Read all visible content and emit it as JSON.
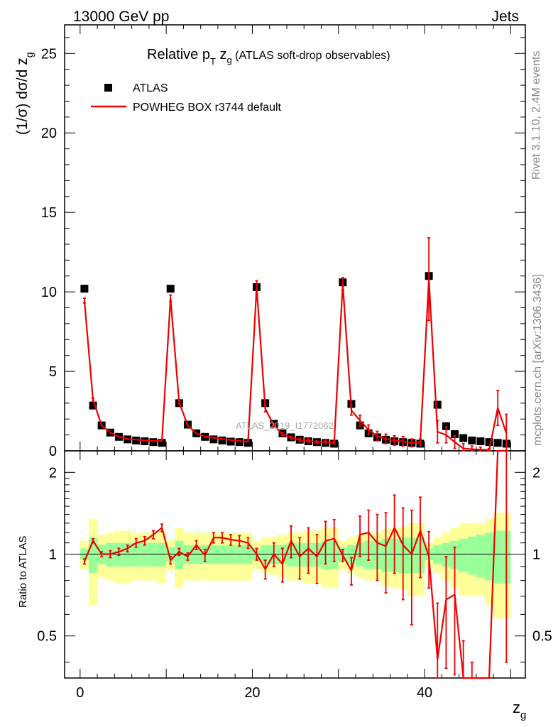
{
  "header": {
    "energy_label": "13000 GeV pp",
    "process_label": "Jets"
  },
  "side": {
    "rivet": "Rivet 3.1.10,  2.4M events",
    "mcplots": "mcplots.cern.ch [arXiv:1306.3436]"
  },
  "colors": {
    "data": "#000000",
    "mc": "#ee0000",
    "band_inner": "#99ff99",
    "band_outer": "#ffff99"
  },
  "chart_data": {
    "type": "scatter",
    "title_main": "Relative p",
    "title_sub": "T",
    "title_var": " z",
    "title_varsub": "g",
    "title_rest": " (ATLAS soft-drop observables)",
    "ylabel_main": "(1/σ) dσ/d z",
    "ylabel_sub": "g",
    "xlabel_main": "z",
    "xlabel_sub": "g",
    "analysis_label": "ATLAS_2019_I1772062",
    "ratio_ylabel": "Ratio to ATLAS",
    "xlim": [
      -1.8,
      51.7
    ],
    "ylim": [
      0,
      26.8
    ],
    "ratio_ylim": [
      0.35,
      2.4
    ],
    "x_ticks": [
      0,
      20,
      40
    ],
    "x_tick_labels": [
      "0",
      "20",
      "40"
    ],
    "y_ticks": [
      0,
      5,
      10,
      15,
      20,
      25
    ],
    "y_tick_labels": [
      "0",
      "5",
      "10",
      "15",
      "20",
      "25"
    ],
    "ratio_ticks": [
      0.5,
      1,
      2
    ],
    "ratio_tick_labels": [
      "0.5",
      "1",
      "2"
    ],
    "legend": [
      {
        "name": "ATLAS",
        "style": "marker"
      },
      {
        "name": "POWHEG BOX r3744 default",
        "style": "line"
      }
    ],
    "x": [
      0.5,
      1.5,
      2.5,
      3.5,
      4.5,
      5.5,
      6.5,
      7.5,
      8.5,
      9.5,
      10.5,
      11.5,
      12.5,
      13.5,
      14.5,
      15.5,
      16.5,
      17.5,
      18.5,
      19.5,
      20.5,
      21.5,
      22.5,
      23.5,
      24.5,
      25.5,
      26.5,
      27.5,
      28.5,
      29.5,
      30.5,
      31.5,
      32.5,
      33.5,
      34.5,
      35.5,
      36.5,
      37.5,
      38.5,
      39.5,
      40.5,
      41.5,
      42.5,
      43.5,
      44.5,
      45.5,
      46.5,
      47.5,
      48.5,
      49.5
    ],
    "series": [
      {
        "name": "ATLAS",
        "values": [
          10.2,
          2.85,
          1.6,
          1.15,
          0.88,
          0.72,
          0.65,
          0.6,
          0.55,
          0.5,
          10.2,
          3.0,
          1.65,
          1.1,
          0.88,
          0.72,
          0.65,
          0.58,
          0.55,
          0.5,
          10.3,
          3.0,
          1.7,
          1.1,
          0.85,
          0.7,
          0.6,
          0.55,
          0.5,
          0.45,
          10.6,
          2.95,
          1.6,
          1.1,
          0.85,
          0.7,
          0.6,
          0.55,
          0.5,
          0.45,
          11.0,
          2.9,
          1.55,
          1.05,
          0.8,
          0.65,
          0.6,
          0.55,
          0.5,
          0.45
        ]
      },
      {
        "name": "POWHEG BOX r3744 default",
        "values": [
          9.45,
          3.2,
          1.6,
          1.15,
          0.88,
          0.75,
          0.7,
          0.66,
          0.63,
          0.62,
          9.6,
          3.05,
          1.6,
          1.1,
          0.9,
          0.82,
          0.75,
          0.68,
          0.62,
          0.57,
          10.3,
          2.65,
          1.6,
          1.05,
          0.83,
          0.69,
          0.64,
          0.54,
          0.56,
          0.52,
          10.5,
          2.55,
          1.9,
          1.33,
          0.93,
          0.75,
          0.65,
          0.6,
          0.5,
          0.55,
          10.8,
          1.2,
          1.0,
          0.55,
          0.15,
          0.1,
          0.08,
          0.05,
          2.7,
          1.1
        ]
      }
    ],
    "mc_errors": [
      0.15,
      0.1,
      0.05,
      0.05,
      0.04,
      0.03,
      0.03,
      0.03,
      0.03,
      0.03,
      0.2,
      0.1,
      0.05,
      0.05,
      0.04,
      0.04,
      0.03,
      0.03,
      0.03,
      0.03,
      0.4,
      0.2,
      0.1,
      0.1,
      0.1,
      0.1,
      0.12,
      0.1,
      0.1,
      0.1,
      0.4,
      0.3,
      0.35,
      0.3,
      0.3,
      0.3,
      0.3,
      0.3,
      0.25,
      0.2,
      2.6,
      0.7,
      0.5,
      0.4,
      0.3,
      0.2,
      0.15,
      0.1,
      1.1,
      1.2
    ],
    "ratio": [
      0.94,
      1.12,
      1.0,
      1.0,
      1.02,
      1.05,
      1.1,
      1.12,
      1.18,
      1.25,
      0.95,
      1.02,
      0.98,
      1.08,
      0.99,
      1.15,
      1.15,
      1.13,
      1.12,
      1.1,
      1.0,
      0.88,
      1.0,
      0.92,
      1.12,
      0.98,
      1.05,
      0.98,
      1.12,
      1.14,
      0.99,
      0.87,
      1.18,
      1.2,
      1.1,
      1.07,
      1.25,
      1.08,
      1.0,
      1.22,
      0.98,
      0.41,
      0.68,
      0.71,
      0.18,
      0.15,
      0.12,
      0.1,
      5.4,
      2.4
    ],
    "ratio_errors": [
      0.02,
      0.02,
      0.02,
      0.03,
      0.03,
      0.03,
      0.04,
      0.04,
      0.04,
      0.04,
      0.03,
      0.03,
      0.03,
      0.04,
      0.05,
      0.05,
      0.05,
      0.05,
      0.05,
      0.05,
      0.05,
      0.07,
      0.1,
      0.13,
      0.15,
      0.17,
      0.2,
      0.2,
      0.2,
      0.2,
      0.05,
      0.1,
      0.2,
      0.25,
      0.3,
      0.35,
      0.4,
      0.4,
      0.45,
      0.4,
      0.23,
      0.25,
      0.3,
      0.35,
      0.3,
      0.25,
      0.2,
      0.2,
      2.5,
      2.0
    ],
    "band_outer": [
      0.12,
      0.35,
      0.18,
      0.2,
      0.22,
      0.22,
      0.2,
      0.2,
      0.2,
      0.22,
      0.13,
      0.25,
      0.2,
      0.2,
      0.2,
      0.2,
      0.2,
      0.2,
      0.2,
      0.2,
      0.12,
      0.15,
      0.16,
      0.18,
      0.2,
      0.2,
      0.22,
      0.22,
      0.25,
      0.25,
      0.12,
      0.15,
      0.18,
      0.2,
      0.2,
      0.24,
      0.25,
      0.26,
      0.3,
      0.3,
      0.1,
      0.15,
      0.2,
      0.25,
      0.3,
      0.3,
      0.3,
      0.35,
      0.42,
      0.42
    ],
    "band_inner": [
      0.05,
      0.15,
      0.08,
      0.1,
      0.1,
      0.1,
      0.1,
      0.1,
      0.1,
      0.1,
      0.06,
      0.12,
      0.08,
      0.08,
      0.08,
      0.08,
      0.08,
      0.08,
      0.08,
      0.08,
      0.05,
      0.08,
      0.08,
      0.08,
      0.1,
      0.1,
      0.1,
      0.1,
      0.12,
      0.12,
      0.06,
      0.08,
      0.1,
      0.12,
      0.12,
      0.14,
      0.14,
      0.15,
      0.15,
      0.15,
      0.05,
      0.08,
      0.1,
      0.12,
      0.14,
      0.16,
      0.18,
      0.2,
      0.22,
      0.22
    ]
  }
}
